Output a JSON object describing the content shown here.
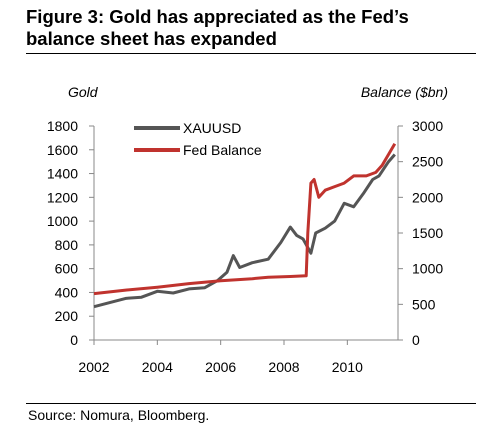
{
  "title": "Figure 3: Gold has appreciated as the Fed’s balance sheet has expanded",
  "source": "Source: Nomura, Bloomberg.",
  "chart_data": {
    "type": "line",
    "title": "Figure 3: Gold has appreciated as the Fed’s balance sheet has expanded",
    "ylabel_left": "Gold",
    "ylabel_right": "Balance ($bn)",
    "xlim": [
      2002,
      2011.6
    ],
    "ylim_left": [
      0,
      1800
    ],
    "ylim_right": [
      0,
      3000
    ],
    "x_ticks": [
      "2002",
      "2004",
      "2006",
      "2008",
      "2010"
    ],
    "y_left_ticks": [
      "0",
      "200",
      "400",
      "600",
      "800",
      "1000",
      "1200",
      "1400",
      "1600",
      "1800"
    ],
    "y_right_ticks": [
      "0",
      "500",
      "1000",
      "1500",
      "2000",
      "2500",
      "3000"
    ],
    "grid": false,
    "legend_position": "top-left",
    "series": [
      {
        "name": "XAUUSD",
        "axis": "left",
        "color": "#555555",
        "points": [
          [
            2002.0,
            280
          ],
          [
            2002.5,
            315
          ],
          [
            2003.0,
            350
          ],
          [
            2003.5,
            360
          ],
          [
            2004.0,
            410
          ],
          [
            2004.5,
            395
          ],
          [
            2005.0,
            430
          ],
          [
            2005.5,
            440
          ],
          [
            2005.9,
            500
          ],
          [
            2006.2,
            570
          ],
          [
            2006.4,
            710
          ],
          [
            2006.6,
            610
          ],
          [
            2007.0,
            650
          ],
          [
            2007.5,
            680
          ],
          [
            2007.9,
            820
          ],
          [
            2008.2,
            950
          ],
          [
            2008.4,
            880
          ],
          [
            2008.6,
            850
          ],
          [
            2008.85,
            730
          ],
          [
            2009.0,
            900
          ],
          [
            2009.3,
            940
          ],
          [
            2009.6,
            1000
          ],
          [
            2009.9,
            1150
          ],
          [
            2010.2,
            1120
          ],
          [
            2010.5,
            1230
          ],
          [
            2010.8,
            1350
          ],
          [
            2011.0,
            1380
          ],
          [
            2011.3,
            1500
          ],
          [
            2011.5,
            1560
          ]
        ]
      },
      {
        "name": "Fed Balance",
        "axis": "right",
        "color": "#c0332e",
        "points": [
          [
            2002.0,
            650
          ],
          [
            2003.0,
            700
          ],
          [
            2004.0,
            740
          ],
          [
            2005.0,
            790
          ],
          [
            2006.0,
            830
          ],
          [
            2007.0,
            860
          ],
          [
            2007.5,
            880
          ],
          [
            2008.2,
            890
          ],
          [
            2008.7,
            900
          ],
          [
            2008.75,
            1500
          ],
          [
            2008.85,
            2200
          ],
          [
            2008.95,
            2250
          ],
          [
            2009.1,
            2000
          ],
          [
            2009.3,
            2100
          ],
          [
            2009.6,
            2150
          ],
          [
            2009.9,
            2200
          ],
          [
            2010.2,
            2300
          ],
          [
            2010.6,
            2300
          ],
          [
            2010.9,
            2350
          ],
          [
            2011.1,
            2450
          ],
          [
            2011.3,
            2600
          ],
          [
            2011.5,
            2750
          ]
        ]
      }
    ]
  }
}
